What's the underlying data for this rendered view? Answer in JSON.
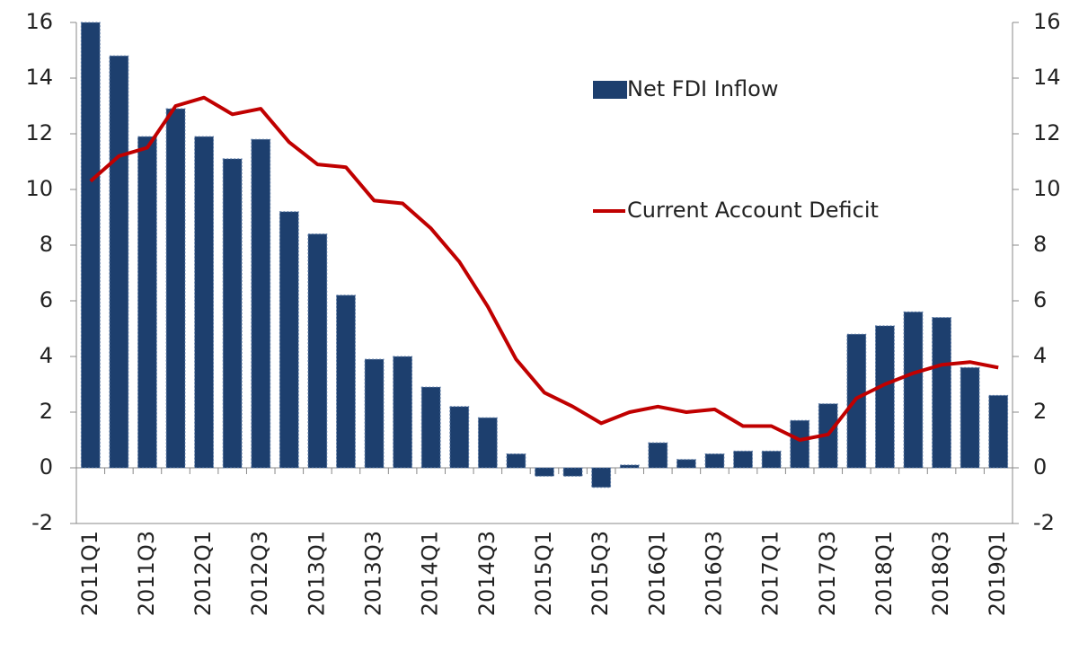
{
  "chart_data": {
    "type": "bar",
    "categories": [
      "2011Q1",
      null,
      "2011Q3",
      null,
      "2012Q1",
      null,
      "2012Q3",
      null,
      "2013Q1",
      null,
      "2013Q3",
      null,
      "2014Q1",
      null,
      "2014Q3",
      null,
      "2015Q1",
      null,
      "2015Q3",
      null,
      "2016Q1",
      null,
      "2016Q3",
      null,
      "2017Q1",
      null,
      "2017Q3",
      null,
      "2018Q1",
      null,
      "2018Q3",
      null,
      "2019Q1"
    ],
    "series": [
      {
        "name": "Net FDI Inflow",
        "type": "bar",
        "color": "#1d3f6e",
        "values": [
          16.0,
          14.8,
          11.9,
          12.9,
          11.9,
          11.1,
          11.8,
          9.2,
          8.4,
          6.2,
          3.9,
          4.0,
          2.9,
          2.2,
          1.8,
          0.5,
          -0.3,
          -0.3,
          -0.7,
          0.1,
          0.9,
          0.3,
          0.5,
          0.6,
          0.6,
          1.7,
          2.3,
          4.8,
          5.1,
          5.6,
          5.4,
          3.6,
          2.6
        ]
      },
      {
        "name": "Current Account Deficit",
        "type": "line",
        "axis": "y2",
        "color": "#c00000",
        "values": [
          10.3,
          11.2,
          11.5,
          13.0,
          13.3,
          12.7,
          12.9,
          11.7,
          10.9,
          10.8,
          9.6,
          9.5,
          8.6,
          7.4,
          5.8,
          3.9,
          2.7,
          2.2,
          1.6,
          2.0,
          2.2,
          2.0,
          2.1,
          1.5,
          1.5,
          1.0,
          1.2,
          2.5,
          3.0,
          3.4,
          3.7,
          3.8,
          3.6
        ]
      }
    ],
    "ylim": [
      -2,
      16
    ],
    "yticks": [
      -2,
      0,
      2,
      4,
      6,
      8,
      10,
      12,
      14,
      16
    ],
    "y2lim": [
      -2,
      16
    ],
    "y2ticks": [
      -2,
      0,
      2,
      4,
      6,
      8,
      10,
      12,
      14,
      16
    ],
    "legend": "upper right"
  }
}
